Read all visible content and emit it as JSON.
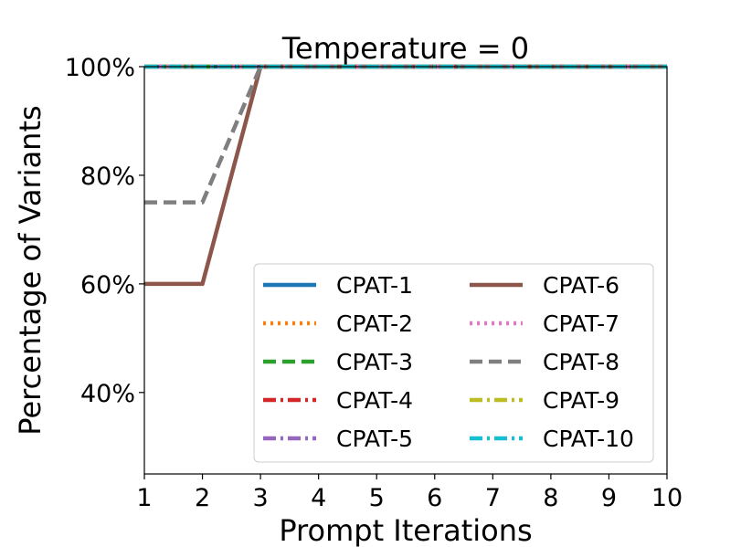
{
  "chart_data": {
    "type": "line",
    "title": "Temperature = 0",
    "xlabel": "Prompt Iterations",
    "ylabel": "Percentage of Variants",
    "x": [
      1,
      2,
      3,
      4,
      5,
      6,
      7,
      8,
      9,
      10
    ],
    "xlim": [
      1,
      10
    ],
    "ylim": [
      25,
      100
    ],
    "yticks": [
      40,
      60,
      80,
      100
    ],
    "ytick_labels": [
      "40%",
      "60%",
      "80%",
      "100%"
    ],
    "xtick_labels": [
      "1",
      "2",
      "3",
      "4",
      "5",
      "6",
      "7",
      "8",
      "9",
      "10"
    ],
    "grid": false,
    "legend_position": "lower-right",
    "legend_columns": 2,
    "series": [
      {
        "name": "CPAT-1",
        "color": "#1f77b4",
        "style": "solid",
        "values": [
          100,
          100,
          100,
          100,
          100,
          100,
          100,
          100,
          100,
          100
        ]
      },
      {
        "name": "CPAT-2",
        "color": "#ff7f0e",
        "style": "dotted",
        "values": [
          100,
          100,
          100,
          100,
          100,
          100,
          100,
          100,
          100,
          100
        ]
      },
      {
        "name": "CPAT-3",
        "color": "#2ca02c",
        "style": "dashed",
        "values": [
          100,
          100,
          100,
          100,
          100,
          100,
          100,
          100,
          100,
          100
        ]
      },
      {
        "name": "CPAT-4",
        "color": "#d62728",
        "style": "dashdot",
        "values": [
          100,
          100,
          100,
          100,
          100,
          100,
          100,
          100,
          100,
          100
        ]
      },
      {
        "name": "CPAT-5",
        "color": "#9467bd",
        "style": "dashdot",
        "values": [
          100,
          100,
          100,
          100,
          100,
          100,
          100,
          100,
          100,
          100
        ]
      },
      {
        "name": "CPAT-6",
        "color": "#8c564b",
        "style": "solid",
        "values": [
          60,
          60,
          100,
          100,
          100,
          100,
          100,
          100,
          100,
          100
        ]
      },
      {
        "name": "CPAT-7",
        "color": "#e377c2",
        "style": "dotted",
        "values": [
          100,
          100,
          100,
          100,
          100,
          100,
          100,
          100,
          100,
          100
        ]
      },
      {
        "name": "CPAT-8",
        "color": "#7f7f7f",
        "style": "dashed",
        "values": [
          75,
          75,
          100,
          100,
          100,
          100,
          100,
          100,
          100,
          100
        ]
      },
      {
        "name": "CPAT-9",
        "color": "#bcbd22",
        "style": "dashdot",
        "values": [
          100,
          100,
          100,
          100,
          100,
          100,
          100,
          100,
          100,
          100
        ]
      },
      {
        "name": "CPAT-10",
        "color": "#17becf",
        "style": "dashdot",
        "values": [
          100,
          100,
          100,
          100,
          100,
          100,
          100,
          100,
          100,
          100
        ]
      }
    ]
  }
}
